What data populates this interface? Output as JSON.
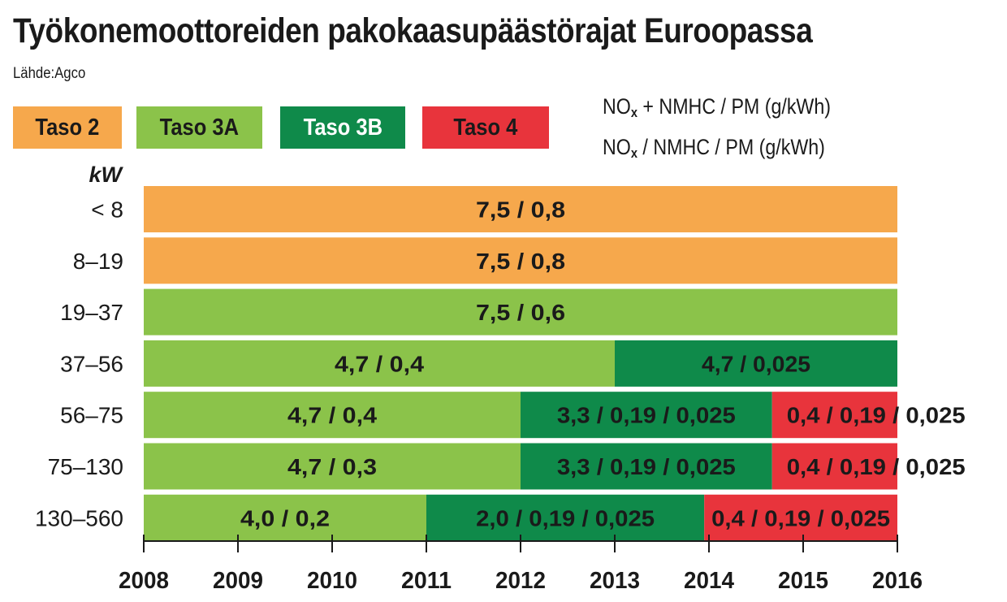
{
  "title": "Työkonemoottoreiden pakokaasupäästörajat Euroopassa",
  "source": "Lähde:Agco",
  "legend": [
    {
      "label": "Taso 2",
      "color": "#f6a84c",
      "text_color": "#1a1a1a"
    },
    {
      "label": "Taso 3A",
      "color": "#8bc34a",
      "text_color": "#1a1a1a"
    },
    {
      "label": "Taso 3B",
      "color": "#0f8a4a",
      "text_color": "#ffffff"
    },
    {
      "label": "Taso 4",
      "color": "#e8343c",
      "text_color": "#1a1a1a"
    }
  ],
  "units": {
    "line1": {
      "pre": "NO",
      "sub": "x",
      "post": " + NMHC / PM (g/kWh)"
    },
    "line2": {
      "pre": "NO",
      "sub": "x",
      "post": " / NMHC / PM (g/kWh)"
    }
  },
  "chart_data": {
    "type": "bar",
    "orientation": "horizontal-timeline",
    "y_axis_label": "kW",
    "x_ticks": [
      "2008",
      "2009",
      "2010",
      "2011",
      "2012",
      "2013",
      "2014",
      "2015",
      "2016"
    ],
    "xlim": [
      2008,
      2016
    ],
    "rows": [
      {
        "label": "< 8",
        "segments": [
          {
            "tier": "Taso 2",
            "start": 2008,
            "end": 2016,
            "value": "7,5 / 0,8"
          }
        ]
      },
      {
        "label": "8–19",
        "segments": [
          {
            "tier": "Taso 2",
            "start": 2008,
            "end": 2016,
            "value": "7,5 / 0,8"
          }
        ]
      },
      {
        "label": "19–37",
        "segments": [
          {
            "tier": "Taso 3A",
            "start": 2008,
            "end": 2016,
            "value": "7,5 / 0,6"
          }
        ]
      },
      {
        "label": "37–56",
        "segments": [
          {
            "tier": "Taso 3A",
            "start": 2008,
            "end": 2013,
            "value": "4,7 / 0,4"
          },
          {
            "tier": "Taso 3B",
            "start": 2013,
            "end": 2016,
            "value": "4,7 / 0,025"
          }
        ]
      },
      {
        "label": "56–75",
        "segments": [
          {
            "tier": "Taso 3A",
            "start": 2008,
            "end": 2012,
            "value": "4,7 / 0,4"
          },
          {
            "tier": "Taso 3B",
            "start": 2012,
            "end": 2014.67,
            "value": "3,3 / 0,19 / 0,025"
          },
          {
            "tier": "Taso 4",
            "start": 2014.67,
            "end": 2016,
            "value": "0,4 / 0,19 / 0,025"
          }
        ]
      },
      {
        "label": "75–130",
        "segments": [
          {
            "tier": "Taso 3A",
            "start": 2008,
            "end": 2012,
            "value": "4,7 / 0,3"
          },
          {
            "tier": "Taso 3B",
            "start": 2012,
            "end": 2014.67,
            "value": "3,3 / 0,19 / 0,025"
          },
          {
            "tier": "Taso 4",
            "start": 2014.67,
            "end": 2016,
            "value": "0,4 / 0,19 / 0,025"
          }
        ]
      },
      {
        "label": "130–560",
        "segments": [
          {
            "tier": "Taso 3A",
            "start": 2008,
            "end": 2011,
            "value": "4,0 / 0,2"
          },
          {
            "tier": "Taso 3B",
            "start": 2011,
            "end": 2013.95,
            "value": "2,0 / 0,19 / 0,025"
          },
          {
            "tier": "Taso 4",
            "start": 2013.95,
            "end": 2016,
            "value": "0,4 / 0,19 / 0,025"
          }
        ]
      }
    ]
  }
}
